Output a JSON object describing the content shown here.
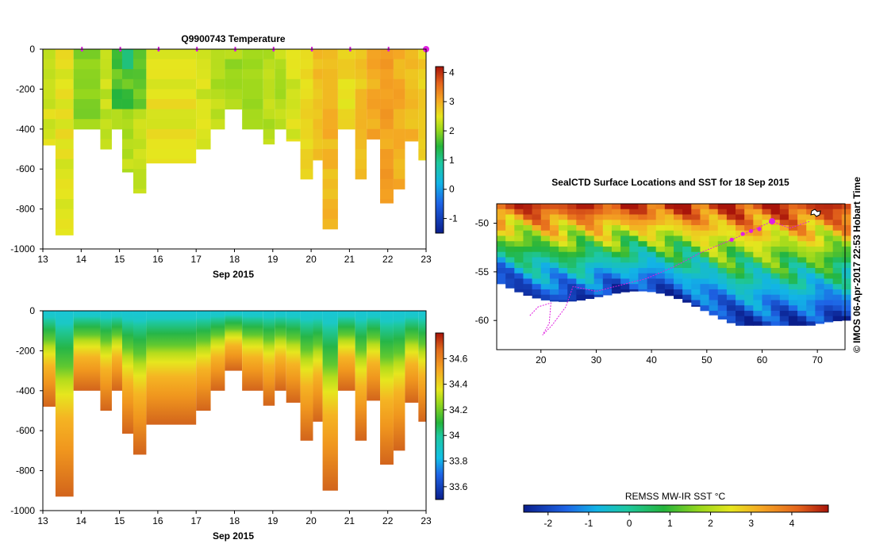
{
  "chart_data": [
    {
      "type": "heatmap",
      "title": "Q9900743  Temperature",
      "xlabel": "Sep 2015",
      "ylabel": "",
      "xlim": [
        13,
        23
      ],
      "ylim": [
        -1000,
        0
      ],
      "x_ticks": [
        13,
        14,
        15,
        16,
        17,
        18,
        19,
        20,
        21,
        22,
        23
      ],
      "y_ticks": [
        0,
        -200,
        -400,
        -600,
        -800,
        -1000
      ],
      "x_tick_labels": [
        "13",
        "14",
        "15",
        "16",
        "17",
        "18",
        "19",
        "20",
        "21",
        "22",
        "23"
      ],
      "y_tick_labels": [
        "0",
        "-200",
        "-400",
        "-600",
        "-800",
        "-1000"
      ],
      "colorbar": {
        "min": -1.5,
        "max": 4.2,
        "ticks": [
          -1,
          0,
          1,
          2,
          3,
          4
        ],
        "tick_labels": [
          "-1",
          "0",
          "1",
          "2",
          "3",
          "4"
        ]
      },
      "profile_markers": [
        14,
        15,
        16,
        17,
        18,
        19,
        20,
        21,
        22,
        23
      ],
      "profiles": [
        {
          "t": 13.0,
          "depth": 480,
          "value": 2.4
        },
        {
          "t": 13.33,
          "depth": 930,
          "value": 2.5
        },
        {
          "t": 13.8,
          "depth": 400,
          "value": 2.0
        },
        {
          "t": 14.5,
          "depth": 500,
          "value": 2.3
        },
        {
          "t": 14.8,
          "depth": 400,
          "value": 2.1
        },
        {
          "t": 15.07,
          "depth": 615,
          "value": 2.2
        },
        {
          "t": 15.36,
          "depth": 720,
          "value": 2.3
        },
        {
          "t": 15.7,
          "depth": 570,
          "value": 2.5
        },
        {
          "t": 17.0,
          "depth": 500,
          "value": 2.4
        },
        {
          "t": 17.38,
          "depth": 400,
          "value": 2.2
        },
        {
          "t": 17.75,
          "depth": 300,
          "value": 2.1
        },
        {
          "t": 18.2,
          "depth": 400,
          "value": 2.0
        },
        {
          "t": 18.75,
          "depth": 475,
          "value": 2.2
        },
        {
          "t": 19.05,
          "depth": 400,
          "value": 2.2
        },
        {
          "t": 19.35,
          "depth": 460,
          "value": 2.4
        },
        {
          "t": 19.72,
          "depth": 650,
          "value": 2.6
        },
        {
          "t": 20.05,
          "depth": 555,
          "value": 2.8
        },
        {
          "t": 20.3,
          "depth": 900,
          "value": 2.9
        },
        {
          "t": 20.7,
          "depth": 400,
          "value": 2.6
        },
        {
          "t": 21.15,
          "depth": 650,
          "value": 2.8
        },
        {
          "t": 21.45,
          "depth": 450,
          "value": 3.0
        },
        {
          "t": 21.8,
          "depth": 770,
          "value": 3.1
        },
        {
          "t": 22.15,
          "depth": 700,
          "value": 3.0
        },
        {
          "t": 22.45,
          "depth": 460,
          "value": 2.9
        },
        {
          "t": 22.8,
          "depth": 555,
          "value": 2.7
        }
      ]
    },
    {
      "type": "heatmap",
      "title": "",
      "xlabel": "Sep 2015",
      "ylabel": "",
      "xlim": [
        13,
        23
      ],
      "ylim": [
        -1000,
        0
      ],
      "x_ticks": [
        13,
        14,
        15,
        16,
        17,
        18,
        19,
        20,
        21,
        22,
        23
      ],
      "y_ticks": [
        0,
        -200,
        -400,
        -600,
        -800,
        -1000
      ],
      "x_tick_labels": [
        "13",
        "14",
        "15",
        "16",
        "17",
        "18",
        "19",
        "20",
        "21",
        "22",
        "23"
      ],
      "y_tick_labels": [
        "0",
        "-200",
        "-400",
        "-600",
        "-800",
        "-1000"
      ],
      "colorbar": {
        "min": 33.5,
        "max": 34.8,
        "ticks": [
          33.6,
          33.8,
          34,
          34.2,
          34.4,
          34.6
        ],
        "tick_labels": [
          "33.6",
          "33.8",
          "34",
          "34.2",
          "34.4",
          "34.6"
        ]
      }
    },
    {
      "type": "heatmap",
      "title": "SealCTD Surface Locations and SST for 18 Sep 2015",
      "xlabel": "",
      "ylabel": "",
      "xlim": [
        12,
        75
      ],
      "ylim": [
        -63,
        -48
      ],
      "x_ticks": [
        20,
        30,
        40,
        50,
        60,
        70
      ],
      "y_ticks": [
        -50,
        -55,
        -60
      ],
      "x_tick_labels": [
        "20",
        "30",
        "40",
        "50",
        "60",
        "70"
      ],
      "y_tick_labels": [
        "-50",
        "-55",
        "-60"
      ],
      "colorbar_label": "REMSS MW-IR SST °C",
      "colorbar": {
        "min": -2.6,
        "max": 4.9,
        "ticks": [
          -2,
          -1,
          0,
          1,
          2,
          3,
          4
        ],
        "tick_labels": [
          "-2",
          "-1",
          "0",
          "1",
          "2",
          "3",
          "4"
        ]
      },
      "track_points": [
        [
          54.5,
          -51.7
        ],
        [
          56.5,
          -51.1
        ],
        [
          58,
          -50.8
        ],
        [
          59.5,
          -50.6
        ],
        [
          61.8,
          -49.8
        ]
      ]
    }
  ],
  "credit": "©  IMOS 06-Apr-2017 22:53 Hobart Time"
}
